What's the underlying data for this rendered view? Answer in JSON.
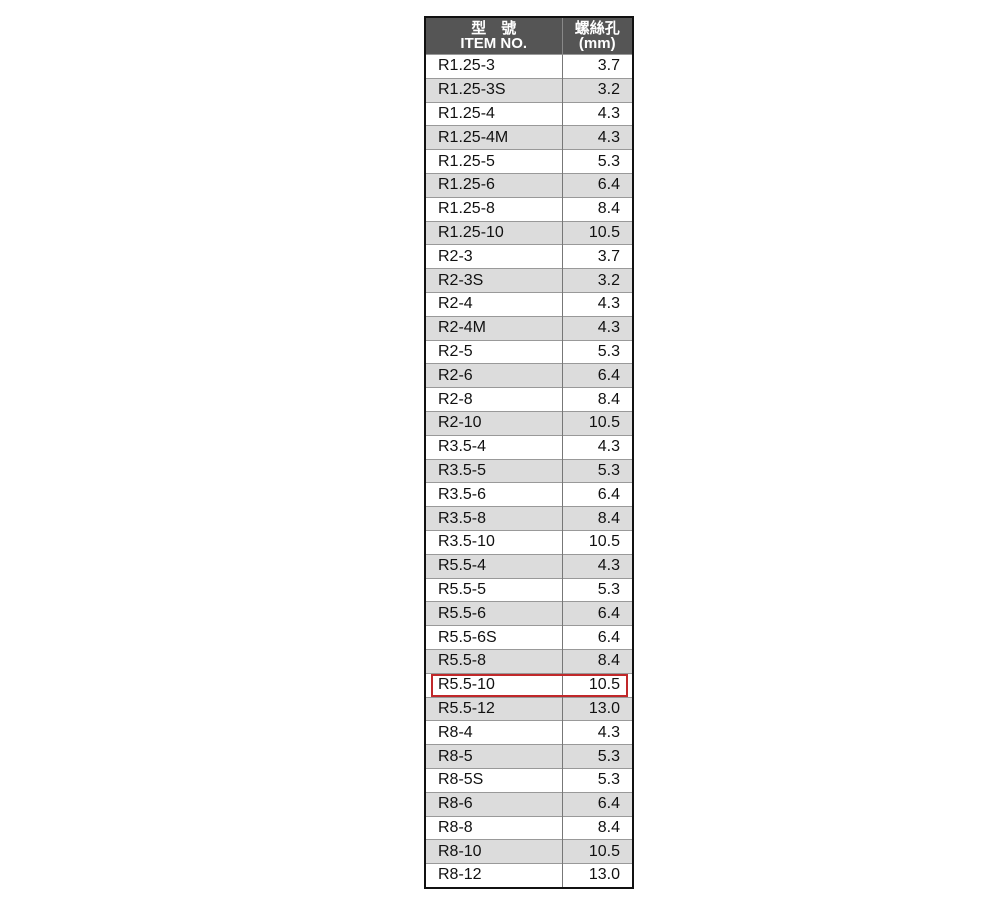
{
  "header": {
    "item_zh": "型　號",
    "item_en": "ITEM NO.",
    "hole_zh": "螺絲孔",
    "hole_unit": "(mm)"
  },
  "highlight_color": "#c0282a",
  "rows": [
    {
      "item": "R1.25-3",
      "hole": "3.7"
    },
    {
      "item": "R1.25-3S",
      "hole": "3.2"
    },
    {
      "item": "R1.25-4",
      "hole": "4.3"
    },
    {
      "item": "R1.25-4M",
      "hole": "4.3"
    },
    {
      "item": "R1.25-5",
      "hole": "5.3"
    },
    {
      "item": "R1.25-6",
      "hole": "6.4"
    },
    {
      "item": "R1.25-8",
      "hole": "8.4"
    },
    {
      "item": "R1.25-10",
      "hole": "10.5"
    },
    {
      "item": "R2-3",
      "hole": "3.7"
    },
    {
      "item": "R2-3S",
      "hole": "3.2"
    },
    {
      "item": "R2-4",
      "hole": "4.3"
    },
    {
      "item": "R2-4M",
      "hole": "4.3"
    },
    {
      "item": "R2-5",
      "hole": "5.3"
    },
    {
      "item": "R2-6",
      "hole": "6.4"
    },
    {
      "item": "R2-8",
      "hole": "8.4"
    },
    {
      "item": "R2-10",
      "hole": "10.5"
    },
    {
      "item": "R3.5-4",
      "hole": "4.3"
    },
    {
      "item": "R3.5-5",
      "hole": "5.3"
    },
    {
      "item": "R3.5-6",
      "hole": "6.4"
    },
    {
      "item": "R3.5-8",
      "hole": "8.4"
    },
    {
      "item": "R3.5-10",
      "hole": "10.5"
    },
    {
      "item": "R5.5-4",
      "hole": "4.3"
    },
    {
      "item": "R5.5-5",
      "hole": "5.3"
    },
    {
      "item": "R5.5-6",
      "hole": "6.4"
    },
    {
      "item": "R5.5-6S",
      "hole": "6.4"
    },
    {
      "item": "R5.5-8",
      "hole": "8.4"
    },
    {
      "item": "R5.5-10",
      "hole": "10.5",
      "highlighted": true
    },
    {
      "item": "R5.5-12",
      "hole": "13.0"
    },
    {
      "item": "R8-4",
      "hole": "4.3"
    },
    {
      "item": "R8-5",
      "hole": "5.3"
    },
    {
      "item": "R8-5S",
      "hole": "5.3"
    },
    {
      "item": "R8-6",
      "hole": "6.4"
    },
    {
      "item": "R8-8",
      "hole": "8.4"
    },
    {
      "item": "R8-10",
      "hole": "10.5"
    },
    {
      "item": "R8-12",
      "hole": "13.0"
    }
  ]
}
